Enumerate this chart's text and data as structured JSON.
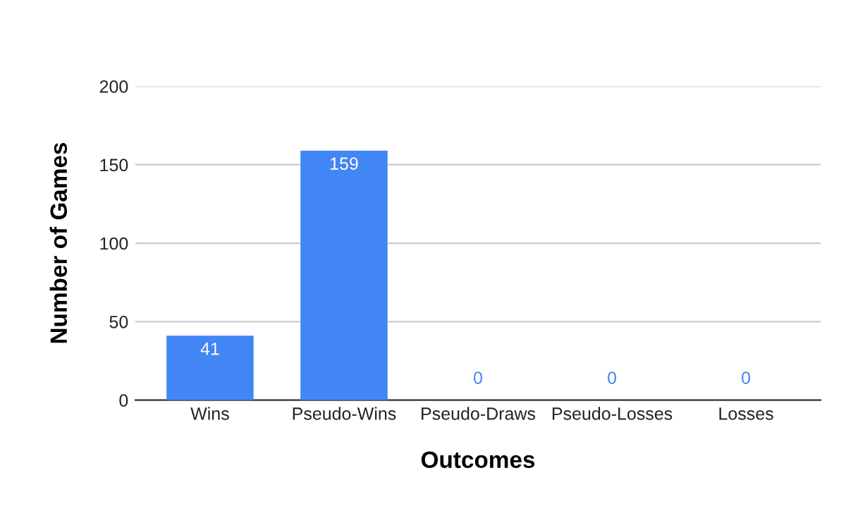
{
  "chart_data": {
    "type": "bar",
    "xlabel": "Outcomes",
    "ylabel": "Number of Games",
    "categories": [
      "Wins",
      "Pseudo-Wins",
      "Pseudo-Draws",
      "Pseudo-Losses",
      "Losses"
    ],
    "values": [
      41,
      159,
      0,
      0,
      0
    ],
    "color": "#4285f4",
    "ylim": [
      0,
      200
    ],
    "yticks": [
      0,
      50,
      100,
      150,
      200
    ],
    "grid": "y",
    "data_labels": true
  }
}
